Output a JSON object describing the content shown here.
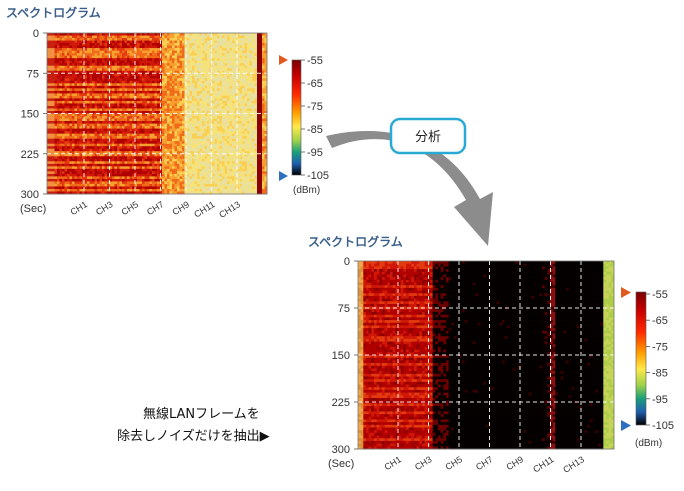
{
  "annotation": {
    "bubble_label": "分析",
    "note_line1": "無線LANフレームを",
    "note_line2": "除去しノイズだけを抽出▶"
  },
  "colors": {
    "arrow": "#8c8c8c",
    "bubble_border": "#29a9d6",
    "title": "#3a5f8a",
    "marker_top": "#e05a1e",
    "marker_bottom": "#2e6fc1"
  },
  "chart_data": [
    {
      "type": "heatmap",
      "title": "スペクトログラム",
      "y_tick_labels": [
        "0",
        "75",
        "150",
        "225",
        "300"
      ],
      "y_unit_label": "(Sec)",
      "ylim": [
        0,
        300
      ],
      "x_tick_labels": [
        "CH1",
        "CH3",
        "CH5",
        "CH7",
        "CH9",
        "CH11",
        "CH13"
      ],
      "colorbar": {
        "tick_labels": [
          "-55",
          "-65",
          "-75",
          "-85",
          "-95",
          "-105"
        ],
        "range": [
          -105,
          -55
        ],
        "unit": "(dBm)"
      }
    },
    {
      "type": "heatmap",
      "title": "スペクトログラム",
      "y_tick_labels": [
        "0",
        "75",
        "150",
        "225",
        "300"
      ],
      "y_unit_label": "(Sec)",
      "ylim": [
        0,
        300
      ],
      "x_tick_labels": [
        "CH1",
        "CH3",
        "CH5",
        "CH7",
        "CH9",
        "CH11",
        "CH13"
      ],
      "colorbar": {
        "tick_labels": [
          "-55",
          "-65",
          "-75",
          "-85",
          "-95",
          "-105"
        ],
        "range": [
          -105,
          -55
        ],
        "unit": "(dBm)"
      }
    }
  ]
}
